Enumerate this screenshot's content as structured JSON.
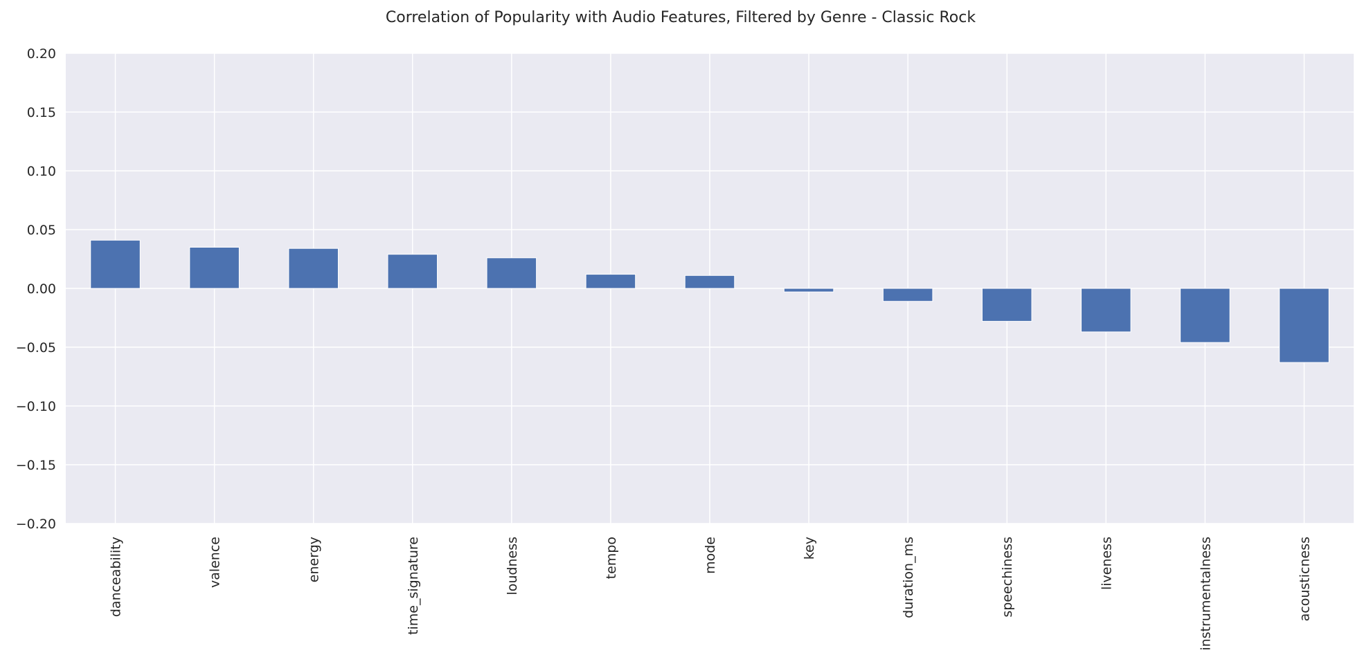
{
  "chart_data": {
    "type": "bar",
    "title": "Correlation of Popularity with Audio Features, Filtered by Genre - Classic Rock",
    "xlabel": "",
    "ylabel": "",
    "categories": [
      "danceability",
      "valence",
      "energy",
      "time_signature",
      "loudness",
      "tempo",
      "mode",
      "key",
      "duration_ms",
      "speechiness",
      "liveness",
      "instrumentalness",
      "acousticness"
    ],
    "values": [
      0.041,
      0.035,
      0.034,
      0.029,
      0.026,
      0.012,
      0.011,
      -0.003,
      -0.011,
      -0.028,
      -0.037,
      -0.046,
      -0.063
    ],
    "ylim": [
      -0.2,
      0.2
    ],
    "yticks": [
      0.2,
      0.15,
      0.1,
      0.05,
      0.0,
      -0.05,
      -0.1,
      -0.15,
      -0.2
    ],
    "ytick_labels": [
      "0.20",
      "0.15",
      "0.10",
      "0.05",
      "0.00",
      "−0.05",
      "−0.10",
      "−0.15",
      "−0.20"
    ],
    "grid": true,
    "colors": {
      "bar": "#4c72b0",
      "background": "#eaeaf2",
      "grid": "#ffffff"
    }
  }
}
